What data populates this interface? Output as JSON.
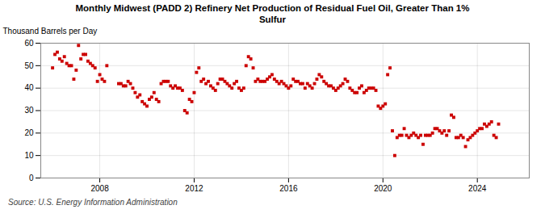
{
  "chart_data": {
    "type": "scatter",
    "title": "Monthly Midwest (PADD 2) Refinery Net Production of Residual Fuel Oil, Greater Than 1%\nSulfur",
    "ylabel": "Thousand Barrels per Day",
    "source": "Source: U.S. Energy Information Administration",
    "color": "#cc0000",
    "marker": "square",
    "grid": true,
    "xlim": [
      2005.5,
      2026.2
    ],
    "xticks": [
      2008,
      2012,
      2016,
      2020,
      2024
    ],
    "ylim": [
      0,
      60
    ],
    "yticks": [
      0,
      10,
      20,
      30,
      40,
      50,
      60
    ],
    "x": [
      2006.0,
      2006.1,
      2006.2,
      2006.3,
      2006.4,
      2006.5,
      2006.6,
      2006.7,
      2006.8,
      2006.9,
      2007.0,
      2007.1,
      2007.2,
      2007.3,
      2007.4,
      2007.5,
      2007.6,
      2007.7,
      2007.8,
      2007.9,
      2008.0,
      2008.1,
      2008.2,
      2008.3,
      2008.8,
      2008.9,
      2009.0,
      2009.1,
      2009.2,
      2009.3,
      2009.4,
      2009.5,
      2009.6,
      2009.7,
      2009.8,
      2009.9,
      2010.0,
      2010.1,
      2010.2,
      2010.3,
      2010.4,
      2010.5,
      2010.6,
      2010.7,
      2010.8,
      2010.9,
      2011.0,
      2011.1,
      2011.2,
      2011.3,
      2011.4,
      2011.5,
      2011.6,
      2011.7,
      2011.8,
      2011.9,
      2012.0,
      2012.1,
      2012.2,
      2012.3,
      2012.4,
      2012.5,
      2012.6,
      2012.7,
      2012.8,
      2012.9,
      2013.0,
      2013.1,
      2013.2,
      2013.3,
      2013.4,
      2013.5,
      2013.6,
      2013.7,
      2013.8,
      2013.9,
      2014.0,
      2014.1,
      2014.2,
      2014.3,
      2014.4,
      2014.5,
      2014.6,
      2014.7,
      2014.8,
      2014.9,
      2015.0,
      2015.1,
      2015.2,
      2015.3,
      2015.4,
      2015.5,
      2015.6,
      2015.7,
      2015.8,
      2015.9,
      2016.0,
      2016.1,
      2016.2,
      2016.3,
      2016.4,
      2016.5,
      2016.6,
      2016.7,
      2016.8,
      2016.9,
      2017.0,
      2017.1,
      2017.2,
      2017.3,
      2017.4,
      2017.5,
      2017.6,
      2017.7,
      2017.8,
      2017.9,
      2018.0,
      2018.1,
      2018.2,
      2018.3,
      2018.4,
      2018.5,
      2018.6,
      2018.7,
      2018.8,
      2018.9,
      2019.0,
      2019.1,
      2019.2,
      2019.3,
      2019.4,
      2019.5,
      2019.6,
      2019.7,
      2019.8,
      2019.9,
      2020.0,
      2020.1,
      2020.2,
      2020.3,
      2020.4,
      2020.5,
      2020.6,
      2020.7,
      2020.8,
      2020.9,
      2021.0,
      2021.1,
      2021.2,
      2021.3,
      2021.4,
      2021.5,
      2021.6,
      2021.7,
      2021.8,
      2021.9,
      2022.0,
      2022.1,
      2022.2,
      2022.3,
      2022.4,
      2022.5,
      2022.6,
      2022.7,
      2022.8,
      2022.9,
      2023.0,
      2023.1,
      2023.2,
      2023.3,
      2023.4,
      2023.5,
      2023.6,
      2023.7,
      2023.8,
      2023.9,
      2024.0,
      2024.1,
      2024.2,
      2024.3,
      2024.4,
      2024.5,
      2024.6,
      2024.7,
      2024.8,
      2024.9
    ],
    "values": [
      49,
      55,
      56,
      53,
      52,
      54,
      51,
      50,
      50,
      44,
      48,
      59,
      53,
      55,
      55,
      52,
      51,
      50,
      49,
      43,
      46,
      44,
      43,
      50,
      42,
      42,
      41,
      41,
      43,
      42,
      40,
      38,
      36,
      37,
      34,
      33,
      32,
      35,
      36,
      38,
      35,
      34,
      42,
      43,
      43,
      43,
      41,
      40,
      41,
      40,
      40,
      39,
      30,
      29,
      35,
      34,
      38,
      47,
      49,
      43,
      44,
      42,
      43,
      41,
      40,
      39,
      42,
      44,
      44,
      43,
      42,
      41,
      40,
      42,
      43,
      40,
      39,
      40,
      50,
      54,
      53,
      49,
      43,
      44,
      43,
      43,
      43,
      44,
      45,
      46,
      44,
      43,
      42,
      43,
      42,
      41,
      40,
      41,
      44,
      43,
      43,
      42,
      42,
      40,
      42,
      41,
      40,
      42,
      44,
      46,
      45,
      43,
      42,
      41,
      41,
      40,
      39,
      40,
      41,
      42,
      44,
      43,
      40,
      39,
      38,
      38,
      40,
      41,
      38,
      39,
      40,
      40,
      40,
      39,
      32,
      31,
      32,
      33,
      46,
      49,
      21,
      10,
      18,
      19,
      19,
      22,
      19,
      18,
      19,
      20,
      19,
      18,
      19,
      15,
      19,
      19,
      19,
      20,
      22,
      22,
      21,
      20,
      21,
      19,
      21,
      28,
      27,
      18,
      18,
      19,
      18,
      14,
      17,
      18,
      19,
      20,
      21,
      22,
      22,
      24,
      23,
      24,
      25,
      19,
      18,
      24
    ]
  }
}
